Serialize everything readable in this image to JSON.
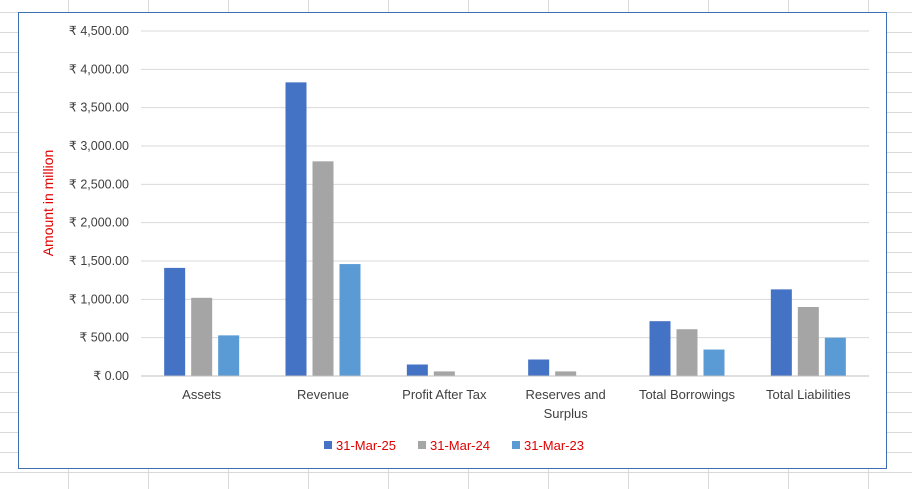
{
  "chart_data": {
    "type": "bar",
    "title": "",
    "xlabel": "",
    "ylabel": "Amount in million",
    "ylim": [
      0,
      4500
    ],
    "y_ticks": [
      "₹ 0.00",
      "₹ 500.00",
      "₹ 1,000.00",
      "₹ 1,500.00",
      "₹ 2,000.00",
      "₹ 2,500.00",
      "₹ 3,000.00",
      "₹ 3,500.00",
      "₹ 4,000.00",
      "₹ 4,500.00"
    ],
    "categories": [
      [
        "Assets"
      ],
      [
        "Revenue"
      ],
      [
        "Profit After Tax"
      ],
      [
        "Reserves and",
        "Surplus"
      ],
      [
        "Total Borrowings"
      ],
      [
        "Total Liabilities"
      ]
    ],
    "series": [
      {
        "name": "31-Mar-25",
        "color": "#4472c4",
        "values": [
          1410,
          3830,
          150,
          215,
          715,
          1130
        ]
      },
      {
        "name": "31-Mar-24",
        "color": "#a5a5a5",
        "values": [
          1020,
          2800,
          60,
          60,
          610,
          900
        ]
      },
      {
        "name": "31-Mar-23",
        "color": "#5b9bd5",
        "values": [
          530,
          1460,
          0,
          0,
          345,
          500
        ]
      }
    ],
    "grid": true,
    "legend_position": "bottom"
  }
}
